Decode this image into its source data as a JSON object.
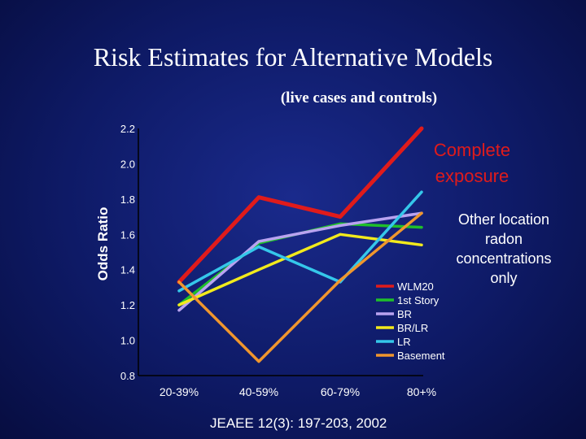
{
  "title": "Risk Estimates for Alternative Models",
  "subtitle": "(live cases and controls)",
  "footer": "JEAEE 12(3): 197-203, 2002",
  "chart_data": {
    "type": "line",
    "ylabel": "Odds Ratio",
    "xlabel": "",
    "categories": [
      "20-39%",
      "40-59%",
      "60-79%",
      "80+%"
    ],
    "ylim": [
      0.8,
      2.2
    ],
    "yticks": [
      "2.2",
      "2.0",
      "1.8",
      "1.6",
      "1.4",
      "1.2",
      "1.0",
      "0.8"
    ],
    "series": [
      {
        "name": "WLM20",
        "color": "#e01b1b",
        "values": [
          1.33,
          1.81,
          1.7,
          2.2
        ]
      },
      {
        "name": "1st Story",
        "color": "#1fbf2a",
        "values": [
          1.2,
          1.55,
          1.66,
          1.64
        ]
      },
      {
        "name": "BR",
        "color": "#b9a3f0",
        "values": [
          1.17,
          1.56,
          1.65,
          1.72
        ]
      },
      {
        "name": "BR/LR",
        "color": "#f2ea1c",
        "values": [
          1.2,
          1.4,
          1.6,
          1.54
        ]
      },
      {
        "name": "LR",
        "color": "#35c7ea",
        "values": [
          1.28,
          1.53,
          1.33,
          1.84
        ]
      },
      {
        "name": "Basement",
        "color": "#f0962d",
        "values": [
          1.33,
          0.88,
          1.34,
          1.72
        ]
      }
    ],
    "annotations": {
      "complete_line1": "Complete",
      "complete_line2": "exposure",
      "other_line1": "Other location",
      "other_line2": "radon",
      "other_line3": "concentrations",
      "other_line4": "only"
    }
  }
}
